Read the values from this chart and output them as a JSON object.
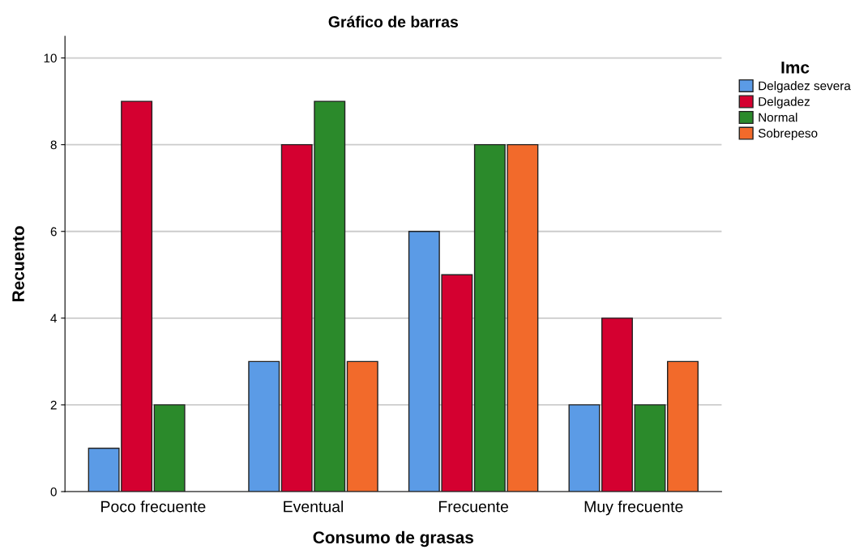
{
  "chart_data": {
    "type": "bar",
    "title": "Gráfico de barras",
    "xlabel": "Consumo de grasas",
    "ylabel": "Recuento",
    "legend_title": "Imc",
    "categories": [
      "Poco frecuente",
      "Eventual",
      "Frecuente",
      "Muy frecuente"
    ],
    "series": [
      {
        "name": "Delgadez severa",
        "color": "#5b9be6",
        "values": [
          1,
          3,
          6,
          2
        ]
      },
      {
        "name": "Delgadez",
        "color": "#d40030",
        "values": [
          9,
          8,
          5,
          4
        ]
      },
      {
        "name": "Normal",
        "color": "#2b8a2b",
        "values": [
          2,
          9,
          8,
          2
        ]
      },
      {
        "name": "Sobrepeso",
        "color": "#f26a2b",
        "values": [
          null,
          3,
          8,
          3
        ]
      }
    ],
    "ylim": [
      0,
      10.5
    ],
    "yticks": [
      0,
      2,
      4,
      6,
      8,
      10
    ],
    "grid": "y",
    "legend": "top right"
  }
}
